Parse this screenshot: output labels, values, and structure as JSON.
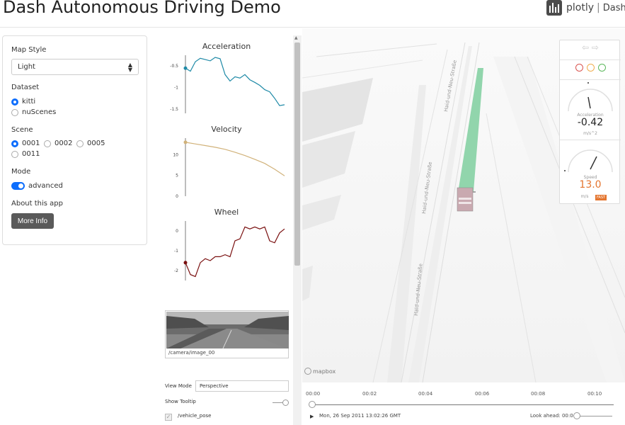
{
  "header": {
    "title": "Dash Autonomous Driving Demo",
    "logo_text": "plotly",
    "logo_dash": "Dash"
  },
  "controls": {
    "map_style_label": "Map Style",
    "map_style_value": "Light",
    "dataset_label": "Dataset",
    "datasets": [
      {
        "label": "kitti",
        "selected": true
      },
      {
        "label": "nuScenes",
        "selected": false
      }
    ],
    "scene_label": "Scene",
    "scenes": [
      {
        "label": "0001",
        "selected": true
      },
      {
        "label": "0002",
        "selected": false
      },
      {
        "label": "0005",
        "selected": false
      },
      {
        "label": "0011",
        "selected": false
      }
    ],
    "mode_label": "Mode",
    "mode_value": "advanced",
    "about_label": "About this app",
    "more_info_label": "More Info"
  },
  "charts": {
    "acceleration": {
      "title": "Acceleration",
      "ticks": [
        "-0.5",
        "-1",
        "-1.5"
      ]
    },
    "velocity": {
      "title": "Velocity",
      "ticks": [
        "10",
        "5",
        "0"
      ]
    },
    "wheel": {
      "title": "Wheel",
      "ticks": [
        "0",
        "-1",
        "-2"
      ]
    }
  },
  "chart_data": [
    {
      "type": "line",
      "title": "Acceleration",
      "ylim": [
        -1.6,
        -0.25
      ],
      "x": [
        0,
        5,
        10,
        15,
        20,
        25,
        30,
        35,
        40,
        45,
        50,
        55,
        60,
        65,
        70,
        75,
        80,
        85,
        90,
        95,
        100
      ],
      "values": [
        -0.55,
        -0.62,
        -0.4,
        -0.32,
        -0.35,
        -0.38,
        -0.3,
        -0.33,
        -0.7,
        -0.85,
        -0.75,
        -0.78,
        -0.7,
        -0.82,
        -0.88,
        -0.95,
        -1.05,
        -1.1,
        -1.25,
        -1.42,
        -1.4
      ]
    },
    {
      "type": "line",
      "title": "Velocity",
      "ylim": [
        0,
        14
      ],
      "x": [
        0,
        10,
        20,
        30,
        40,
        50,
        60,
        70,
        80,
        90,
        100
      ],
      "values": [
        13.0,
        12.6,
        12.2,
        11.8,
        11.3,
        10.6,
        9.8,
        8.9,
        7.9,
        6.5,
        4.9
      ]
    },
    {
      "type": "line",
      "title": "Wheel",
      "ylim": [
        -2.5,
        0.5
      ],
      "x": [
        0,
        5,
        10,
        15,
        20,
        25,
        30,
        35,
        40,
        45,
        50,
        55,
        60,
        65,
        70,
        75,
        80,
        85,
        90,
        95,
        100
      ],
      "values": [
        -1.6,
        -2.2,
        -2.3,
        -1.6,
        -1.4,
        -1.5,
        -1.3,
        -1.3,
        -1.2,
        -1.3,
        -0.5,
        -0.4,
        0.2,
        0.1,
        0.2,
        0.1,
        0.2,
        -0.5,
        -0.6,
        -0.1,
        0.1
      ]
    }
  ],
  "camera": {
    "caption": "/camera/image_00"
  },
  "settings": {
    "view_mode_label": "View Mode",
    "view_mode_value": "Perspective",
    "show_tooltip_label": "Show Tooltip",
    "vehicle_pose_label": "/vehicle_pose"
  },
  "map": {
    "street_labels": [
      "Haid-und-Neu-Straße",
      "Haid-und-Neu-Straße",
      "Haid-und-Neu-Straße"
    ],
    "attribution": "mapbox"
  },
  "hud": {
    "arrows": "⇦ ⇨",
    "lights": [
      {
        "name": "red",
        "color": "#d9534f"
      },
      {
        "name": "yellow",
        "color": "#f0ad4e"
      },
      {
        "name": "green",
        "color": "#5cb85c"
      }
    ],
    "acceleration_label": "Acceleration",
    "acceleration_value": "-0.42",
    "acceleration_unit": "m/s^2",
    "speed_label": "Speed",
    "speed_value": "13.0",
    "speed_unit": "m/s",
    "speed_badge": "FAST",
    "speed_color": "#e4752f"
  },
  "timeline": {
    "ticks": [
      "00:00",
      "00:02",
      "00:04",
      "00:06",
      "00:08",
      "00:10"
    ],
    "timestamp": "Mon, 26 Sep 2011 13:02:26 GMT",
    "lookahead_label": "Look ahead: 00:0",
    "progress": 0.0
  }
}
